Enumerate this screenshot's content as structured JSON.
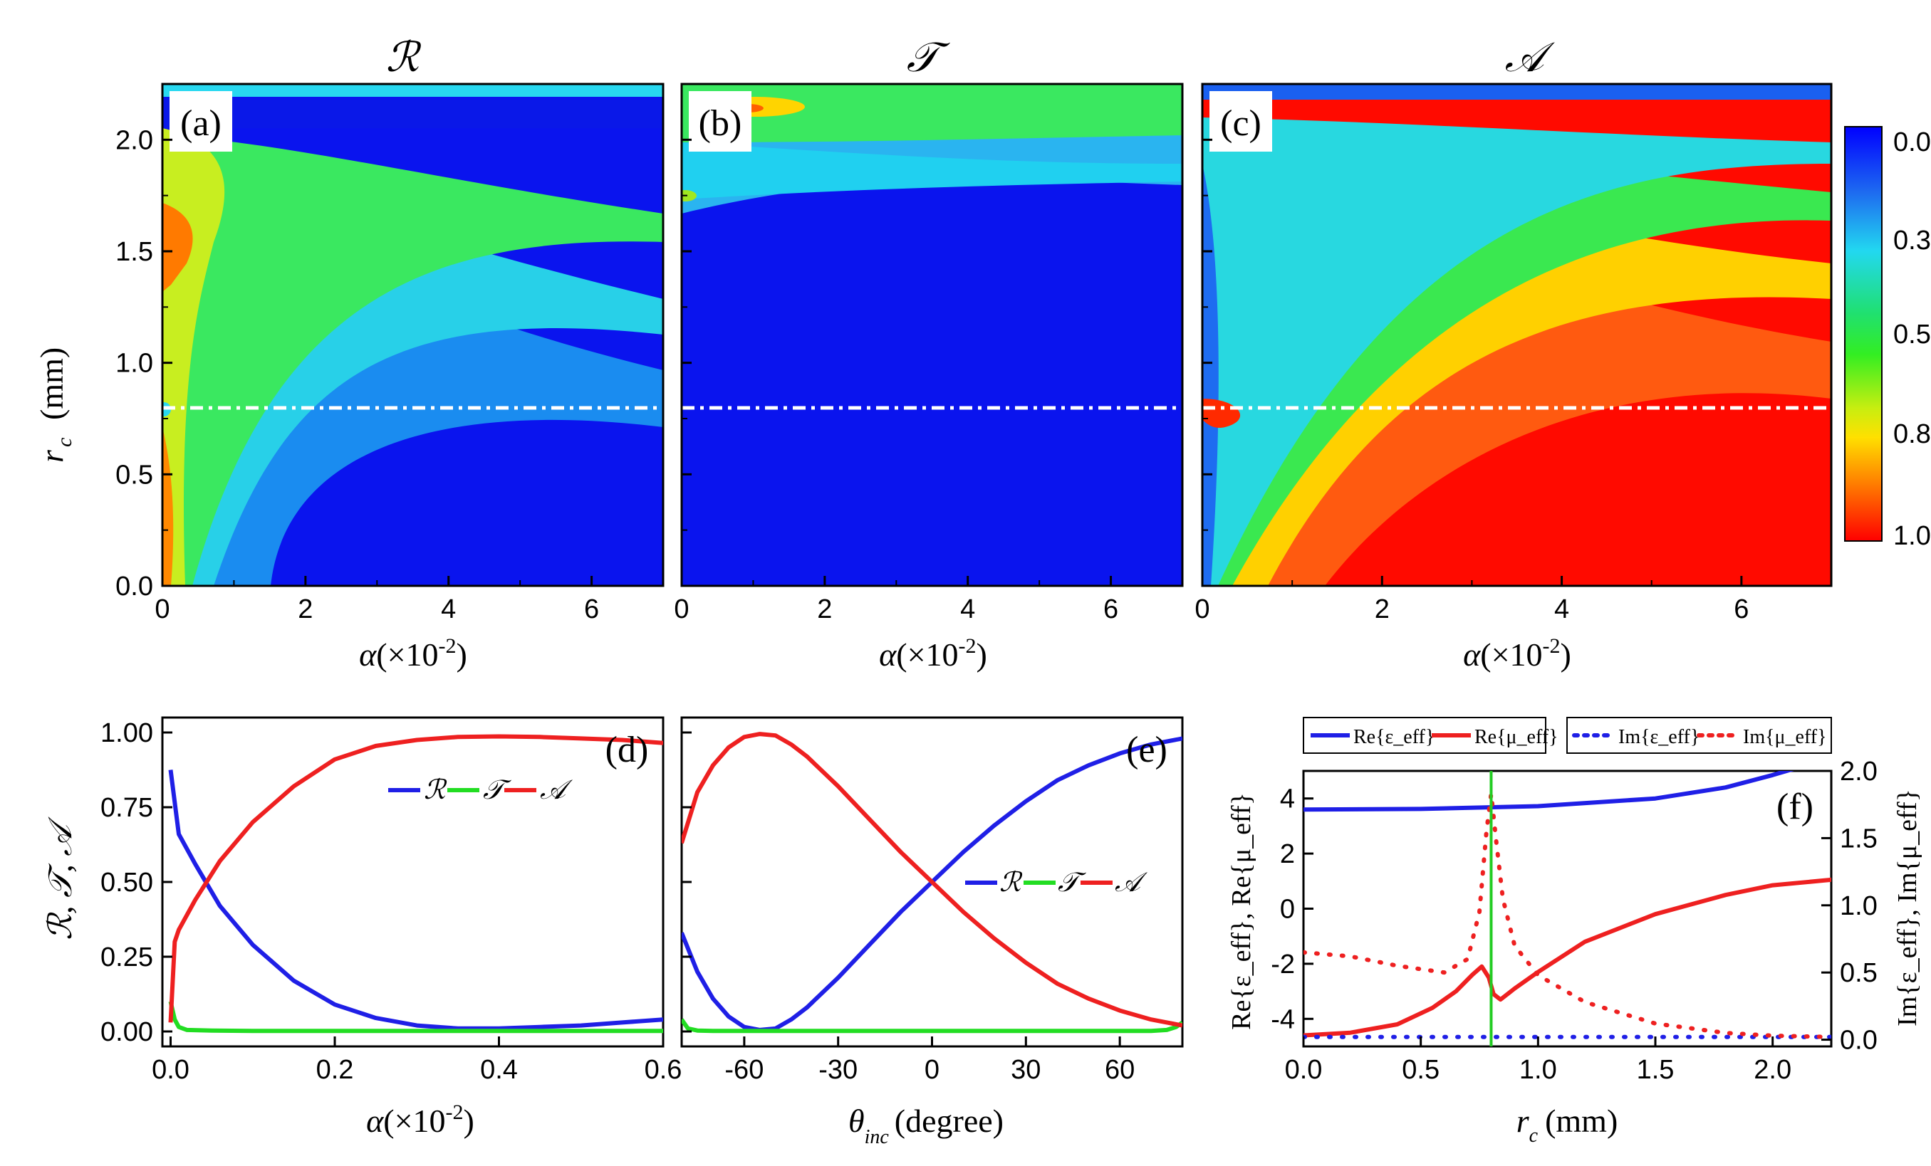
{
  "figure": {
    "top_titles": [
      "ℛ",
      "𝒯",
      "𝒜"
    ],
    "panel_labels": [
      "(a)",
      "(b)",
      "(c)",
      "(d)",
      "(e)",
      "(f)"
    ],
    "colorbar_ticks": [
      "0.0",
      "0.3",
      "0.5",
      "0.8",
      "1.0"
    ],
    "colors": {
      "R": "#1f1fe6",
      "T": "#22dd22",
      "A": "#ee2020",
      "marker_line": "#22cc22",
      "dashdot": "#ffffff"
    }
  },
  "chart_data": [
    {
      "id": "a",
      "type": "heatmap",
      "title": "ℛ",
      "panel_label": "(a)",
      "xlabel_var": "α",
      "xlabel_unit": "(×10",
      "xlabel_exp": "-2",
      "xlabel_close": ")",
      "ylabel_var": "r",
      "ylabel_sub": "c",
      "ylabel_unit": "(mm)",
      "xlim": [
        0,
        7
      ],
      "ylim": [
        0,
        2.25
      ],
      "xticks": [
        "0",
        "2",
        "4",
        "6"
      ],
      "yticks": [
        "0.0",
        "0.5",
        "1.0",
        "1.5",
        "2.0"
      ],
      "dashdot_y": 0.78,
      "colorbar_range": [
        0,
        1
      ]
    },
    {
      "id": "b",
      "type": "heatmap",
      "title": "𝒯",
      "panel_label": "(b)",
      "xlabel_var": "α",
      "xlabel_unit": "(×10",
      "xlabel_exp": "-2",
      "xlabel_close": ")",
      "xlim": [
        0,
        7
      ],
      "ylim": [
        0,
        2.25
      ],
      "xticks": [
        "0",
        "2",
        "4",
        "6"
      ],
      "dashdot_y": 0.78
    },
    {
      "id": "c",
      "type": "heatmap",
      "title": "𝒜",
      "panel_label": "(c)",
      "xlabel_var": "α",
      "xlabel_unit": "(×10",
      "xlabel_exp": "-2",
      "xlabel_close": ")",
      "xlim": [
        0,
        7
      ],
      "ylim": [
        0,
        2.25
      ],
      "xticks": [
        "0",
        "2",
        "4",
        "6"
      ],
      "dashdot_y": 0.78
    },
    {
      "id": "d",
      "type": "line",
      "panel_label": "(d)",
      "xlabel_var": "α",
      "xlabel_unit": "(×10",
      "xlabel_exp": "-2",
      "xlabel_close": ")",
      "ylabel": "ℛ, 𝒯, 𝒜",
      "xlim": [
        -0.01,
        0.6
      ],
      "ylim": [
        -0.05,
        1.05
      ],
      "xticks": [
        "0.0",
        "0.2",
        "0.4",
        "0.6"
      ],
      "yticks": [
        "0.00",
        "0.25",
        "0.50",
        "0.75",
        "1.00"
      ],
      "legend": [
        "ℛ",
        "𝒯",
        "𝒜"
      ],
      "legend_position": "upper-center",
      "series": [
        {
          "name": "ℛ",
          "x": [
            0,
            0.01,
            0.03,
            0.06,
            0.1,
            0.15,
            0.2,
            0.25,
            0.3,
            0.35,
            0.4,
            0.45,
            0.5,
            0.55,
            0.6
          ],
          "y": [
            0.875,
            0.66,
            0.56,
            0.42,
            0.29,
            0.17,
            0.09,
            0.045,
            0.02,
            0.01,
            0.01,
            0.015,
            0.02,
            0.03,
            0.04
          ]
        },
        {
          "name": "𝒯",
          "x": [
            0,
            0.005,
            0.01,
            0.02,
            0.05,
            0.1,
            0.3,
            0.6
          ],
          "y": [
            0.1,
            0.04,
            0.015,
            0.005,
            0.003,
            0.002,
            0.002,
            0.002
          ]
        },
        {
          "name": "𝒜",
          "x": [
            0,
            0.005,
            0.01,
            0.03,
            0.06,
            0.1,
            0.15,
            0.2,
            0.25,
            0.3,
            0.35,
            0.4,
            0.45,
            0.5,
            0.55,
            0.6
          ],
          "y": [
            0.03,
            0.3,
            0.34,
            0.44,
            0.57,
            0.7,
            0.82,
            0.91,
            0.955,
            0.975,
            0.985,
            0.987,
            0.985,
            0.98,
            0.975,
            0.965
          ]
        }
      ]
    },
    {
      "id": "e",
      "type": "line",
      "panel_label": "(e)",
      "xlabel_var": "θ",
      "xlabel_sub": "inc",
      "xlabel_unit": "(degree)",
      "xlim": [
        -80,
        80
      ],
      "ylim": [
        -0.05,
        1.05
      ],
      "xticks": [
        "-60",
        "-30",
        "0",
        "30",
        "60"
      ],
      "xtick_values": [
        -60,
        -30,
        0,
        30,
        60
      ],
      "legend": [
        "ℛ",
        "𝒯",
        "𝒜"
      ],
      "legend_position": "center-right",
      "series": [
        {
          "name": "ℛ",
          "x": [
            -80,
            -75,
            -70,
            -65,
            -60,
            -55,
            -50,
            -45,
            -40,
            -30,
            -20,
            -10,
            0,
            10,
            20,
            30,
            40,
            50,
            60,
            70,
            80
          ],
          "y": [
            0.33,
            0.2,
            0.11,
            0.05,
            0.015,
            0.005,
            0.01,
            0.04,
            0.08,
            0.18,
            0.29,
            0.4,
            0.5,
            0.6,
            0.69,
            0.77,
            0.84,
            0.89,
            0.93,
            0.96,
            0.98
          ]
        },
        {
          "name": "𝒯",
          "x": [
            -80,
            -78,
            -75,
            -70,
            -60,
            -40,
            0,
            40,
            70,
            75,
            78,
            80
          ],
          "y": [
            0.04,
            0.01,
            0.003,
            0.002,
            0.002,
            0.002,
            0.002,
            0.002,
            0.002,
            0.005,
            0.015,
            0.03
          ]
        },
        {
          "name": "𝒜",
          "x": [
            -80,
            -75,
            -70,
            -65,
            -60,
            -55,
            -50,
            -45,
            -40,
            -30,
            -20,
            -10,
            0,
            10,
            20,
            30,
            40,
            50,
            60,
            70,
            80
          ],
          "y": [
            0.63,
            0.8,
            0.89,
            0.95,
            0.985,
            0.995,
            0.99,
            0.96,
            0.92,
            0.82,
            0.71,
            0.6,
            0.5,
            0.4,
            0.31,
            0.23,
            0.16,
            0.11,
            0.07,
            0.04,
            0.02
          ]
        }
      ]
    },
    {
      "id": "f",
      "type": "line",
      "panel_label": "(f)",
      "xlabel_var": "r",
      "xlabel_sub": "c",
      "xlabel_unit": "(mm)",
      "ylabel_left": "Re{ε_eff}, Re{μ_eff}",
      "ylabel_right": "Im{ε_eff}, Im{μ_eff}",
      "xlim": [
        0,
        2.25
      ],
      "ylim_left": [
        -5,
        5
      ],
      "ylim_right": [
        -0.05,
        2.0
      ],
      "xticks": [
        "0.0",
        "0.5",
        "1.0",
        "1.5",
        "2.0"
      ],
      "yticks_left": [
        "-4",
        "-2",
        "0",
        "2",
        "4"
      ],
      "yticks_right": [
        "0.0",
        "0.5",
        "1.0",
        "1.5",
        "2.0"
      ],
      "marker_x": 0.8,
      "legend": [
        "Re{ε_eff}",
        "Re{μ_eff}",
        "Im{ε_eff}",
        "Im{μ_eff}"
      ],
      "legend_position": "top",
      "series": [
        {
          "name": "Re{ε_eff}",
          "axis": "left",
          "style": "solid",
          "x": [
            0,
            0.5,
            1.0,
            1.5,
            1.8,
            2.0,
            2.1
          ],
          "y": [
            3.6,
            3.62,
            3.72,
            4.0,
            4.4,
            4.85,
            5.1
          ]
        },
        {
          "name": "Re{μ_eff}",
          "axis": "left",
          "style": "solid",
          "x": [
            0,
            0.2,
            0.4,
            0.55,
            0.65,
            0.72,
            0.76,
            0.79,
            0.81,
            0.84,
            0.9,
            1.0,
            1.2,
            1.5,
            1.8,
            2.0,
            2.25
          ],
          "y": [
            -4.6,
            -4.5,
            -4.2,
            -3.6,
            -3.0,
            -2.4,
            -2.1,
            -2.5,
            -3.1,
            -3.3,
            -2.9,
            -2.3,
            -1.2,
            -0.2,
            0.5,
            0.85,
            1.05
          ]
        },
        {
          "name": "Im{ε_eff}",
          "axis": "right",
          "style": "dotted",
          "x": [
            0,
            0.5,
            1.0,
            1.5,
            2.0,
            2.25
          ],
          "y": [
            0.02,
            0.02,
            0.02,
            0.02,
            0.02,
            0.02
          ]
        },
        {
          "name": "Im{μ_eff}",
          "axis": "right",
          "style": "dotted",
          "x": [
            0,
            0.2,
            0.4,
            0.6,
            0.7,
            0.75,
            0.78,
            0.8,
            0.82,
            0.85,
            0.9,
            1.0,
            1.2,
            1.5,
            1.8,
            2.0,
            2.25
          ],
          "y": [
            0.65,
            0.62,
            0.55,
            0.5,
            0.6,
            0.95,
            1.55,
            1.83,
            1.5,
            1.05,
            0.7,
            0.48,
            0.28,
            0.12,
            0.05,
            0.03,
            0.02
          ]
        }
      ]
    }
  ]
}
